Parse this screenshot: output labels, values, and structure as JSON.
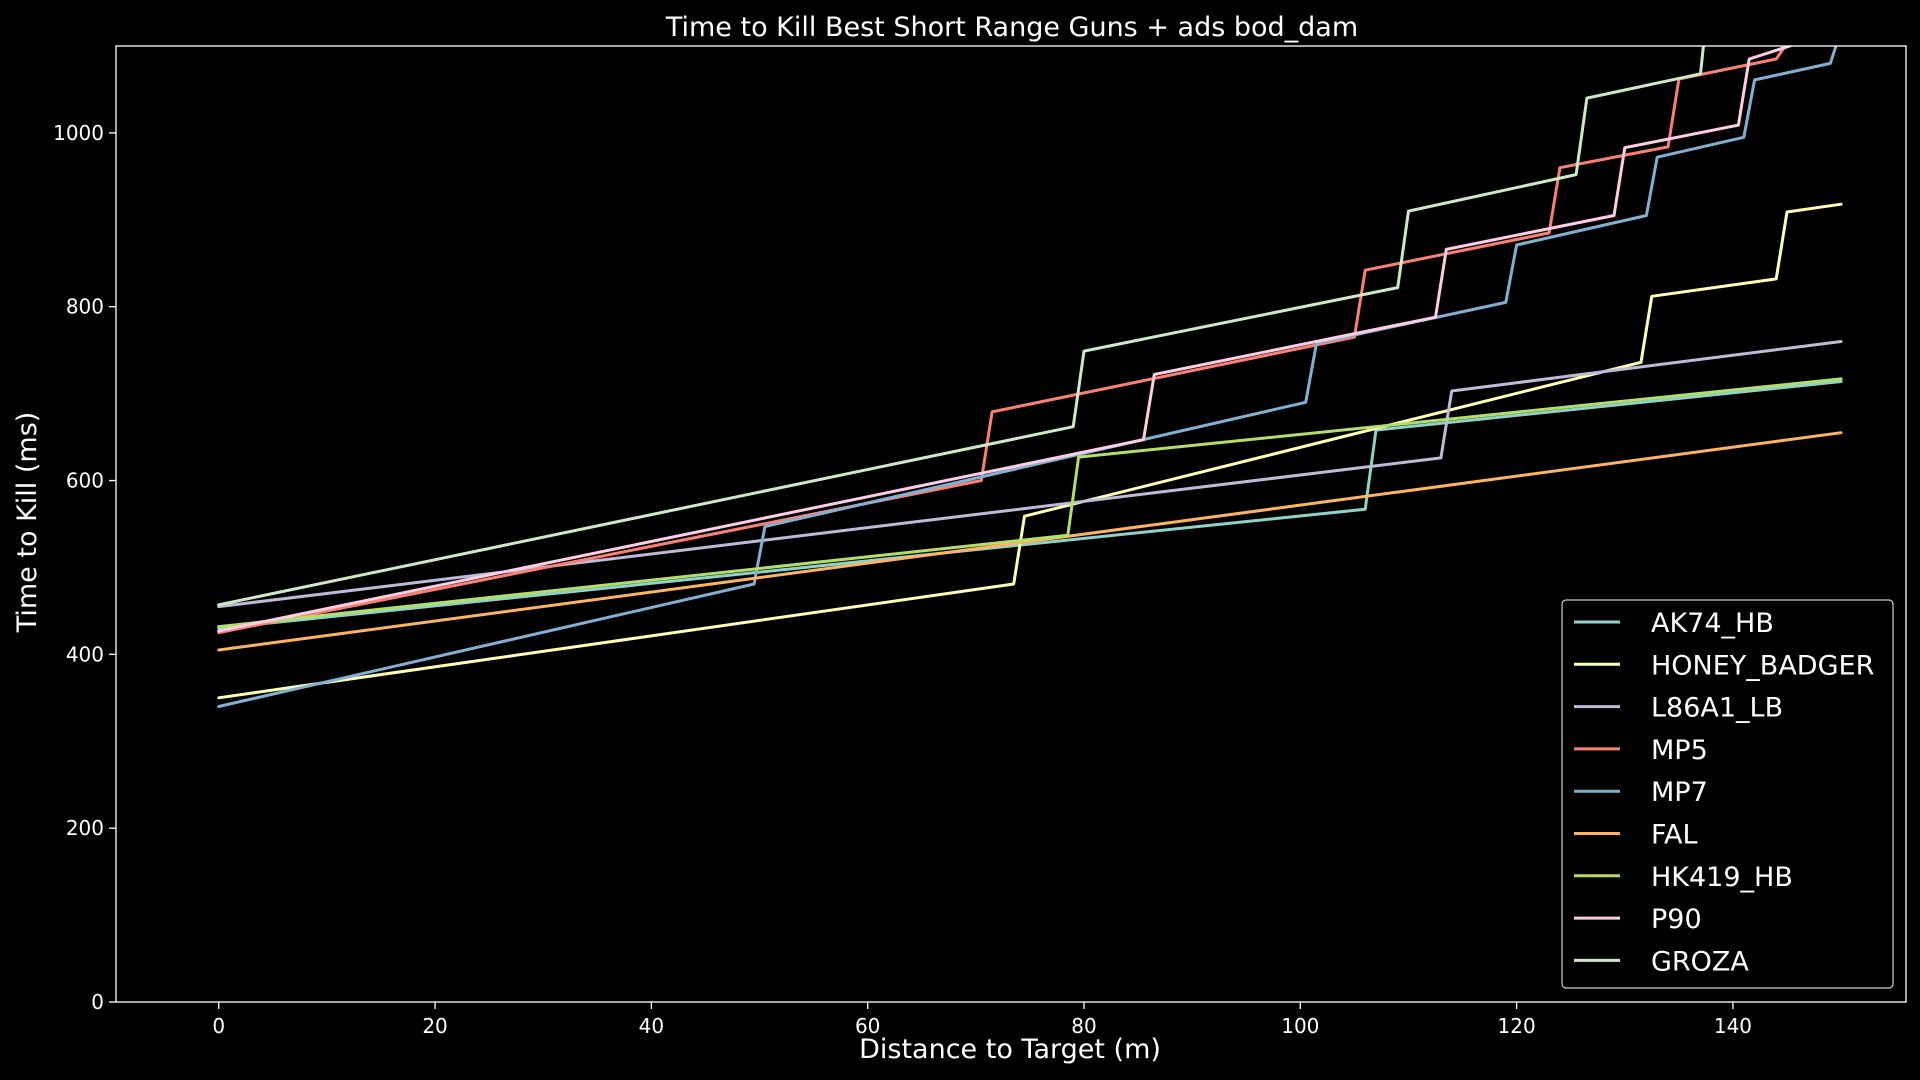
{
  "chart_data": {
    "type": "line",
    "title": "Time to Kill Best Short Range Guns + ads bod_dam",
    "xlabel": "Distance to Target (m)",
    "ylabel": "Time to Kill (ms)",
    "xlim": [
      -9.5,
      156
    ],
    "ylim": [
      0,
      1100
    ],
    "x_ticks": [
      0,
      20,
      40,
      60,
      80,
      100,
      120,
      140
    ],
    "y_ticks": [
      0,
      200,
      400,
      600,
      800,
      1000
    ],
    "grid": false,
    "legend_position": "bottom-right",
    "series": [
      {
        "name": "AK74_HB",
        "color": "#8dd3c7",
        "points": [
          [
            0,
            430
          ],
          [
            106,
            567
          ],
          [
            107,
            658
          ],
          [
            150,
            714
          ]
        ]
      },
      {
        "name": "HONEY_BADGER",
        "color": "#ffffb3",
        "points": [
          [
            0,
            350
          ],
          [
            73.5,
            481
          ],
          [
            74.5,
            559
          ],
          [
            131.5,
            736
          ],
          [
            132.5,
            812
          ],
          [
            144,
            832
          ],
          [
            145,
            909
          ],
          [
            150,
            918
          ]
        ]
      },
      {
        "name": "L86A1_LB",
        "color": "#bebada",
        "points": [
          [
            0,
            455
          ],
          [
            113,
            626
          ],
          [
            114,
            703
          ],
          [
            150,
            760
          ]
        ]
      },
      {
        "name": "MP5",
        "color": "#fb8072",
        "points": [
          [
            0,
            425
          ],
          [
            70.5,
            600
          ],
          [
            71.5,
            679
          ],
          [
            105,
            765
          ],
          [
            106,
            842
          ],
          [
            123,
            885
          ],
          [
            124,
            960
          ],
          [
            134,
            984
          ],
          [
            135,
            1062
          ],
          [
            144,
            1085
          ],
          [
            145,
            1103
          ]
        ]
      },
      {
        "name": "MP7",
        "color": "#80b1d3",
        "points": [
          [
            0,
            340
          ],
          [
            49.5,
            481
          ],
          [
            50.5,
            547
          ],
          [
            100.5,
            690
          ],
          [
            101.5,
            758
          ],
          [
            119,
            805
          ],
          [
            120,
            871
          ],
          [
            132,
            905
          ],
          [
            133,
            972
          ],
          [
            141,
            995
          ],
          [
            142,
            1061
          ],
          [
            149,
            1080
          ],
          [
            149.6,
            1103
          ]
        ]
      },
      {
        "name": "FAL",
        "color": "#fdb462",
        "points": [
          [
            0,
            405
          ],
          [
            150,
            655
          ]
        ]
      },
      {
        "name": "HK419_HB",
        "color": "#b3de69",
        "points": [
          [
            0,
            432
          ],
          [
            78.5,
            537
          ],
          [
            79.5,
            627
          ],
          [
            150,
            717
          ]
        ]
      },
      {
        "name": "P90",
        "color": "#fccde5",
        "points": [
          [
            0,
            427
          ],
          [
            85.5,
            647
          ],
          [
            86.5,
            722
          ],
          [
            112.5,
            788
          ],
          [
            113.5,
            866
          ],
          [
            129,
            905
          ],
          [
            130,
            983
          ],
          [
            140.5,
            1009
          ],
          [
            141.5,
            1085
          ],
          [
            144.5,
            1097
          ],
          [
            146,
            1103
          ]
        ]
      },
      {
        "name": "GROZA",
        "color": "#ccebc5",
        "points": [
          [
            0,
            457
          ],
          [
            79,
            662
          ],
          [
            80,
            749
          ],
          [
            109,
            822
          ],
          [
            110,
            910
          ],
          [
            125.5,
            952
          ],
          [
            126.5,
            1040
          ],
          [
            137,
            1068
          ],
          [
            137.3,
            1103
          ]
        ]
      }
    ]
  }
}
